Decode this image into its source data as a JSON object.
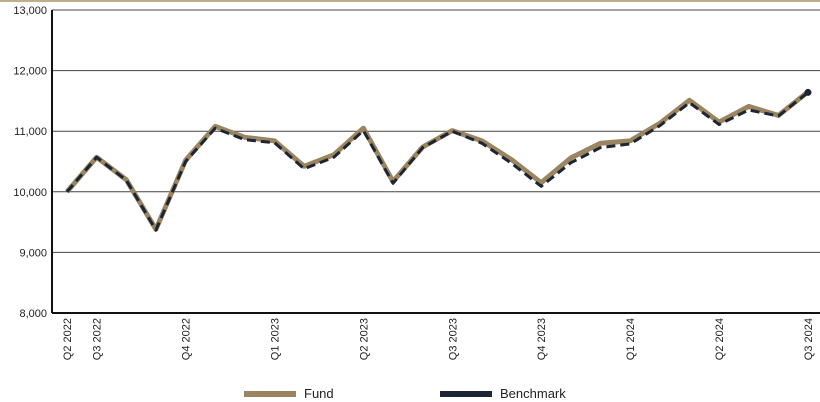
{
  "chart_data": {
    "type": "line",
    "title": "",
    "xlabel": "",
    "ylabel": "",
    "ylim": [
      8000,
      13000
    ],
    "yticks": [
      8000,
      9000,
      10000,
      11000,
      12000,
      13000
    ],
    "ytick_labels": [
      "8,000",
      "9,000",
      "10,000",
      "11,000",
      "12,000",
      "13,000"
    ],
    "grid": "horizontal",
    "legend_position": "bottom",
    "x_tick_labels": [
      {
        "index": 0,
        "label": "Q2 2022"
      },
      {
        "index": 1,
        "label": "Q3 2022"
      },
      {
        "index": 4,
        "label": "Q4 2022"
      },
      {
        "index": 7,
        "label": "Q1 2023"
      },
      {
        "index": 10,
        "label": "Q2 2023"
      },
      {
        "index": 13,
        "label": "Q3 2023"
      },
      {
        "index": 16,
        "label": "Q4 2023"
      },
      {
        "index": 19,
        "label": "Q1 2024"
      },
      {
        "index": 22,
        "label": "Q2 2024"
      },
      {
        "index": 25,
        "label": "Q3 2024"
      }
    ],
    "series": [
      {
        "name": "Fund",
        "color": "#9b8560",
        "values": [
          10000,
          10570,
          10200,
          9380,
          10520,
          11080,
          10900,
          10840,
          10420,
          10610,
          11050,
          10170,
          10740,
          11010,
          10840,
          10530,
          10150,
          10560,
          10800,
          10840,
          11130,
          11510,
          11150,
          11410,
          11260,
          11650
        ]
      },
      {
        "name": "Benchmark",
        "color": "#1b2533",
        "values": [
          10000,
          10570,
          10190,
          9370,
          10500,
          11050,
          10860,
          10810,
          10380,
          10570,
          11010,
          10140,
          10730,
          11000,
          10800,
          10470,
          10090,
          10480,
          10730,
          10790,
          11090,
          11470,
          11110,
          11350,
          11250,
          11640
        ]
      }
    ]
  }
}
